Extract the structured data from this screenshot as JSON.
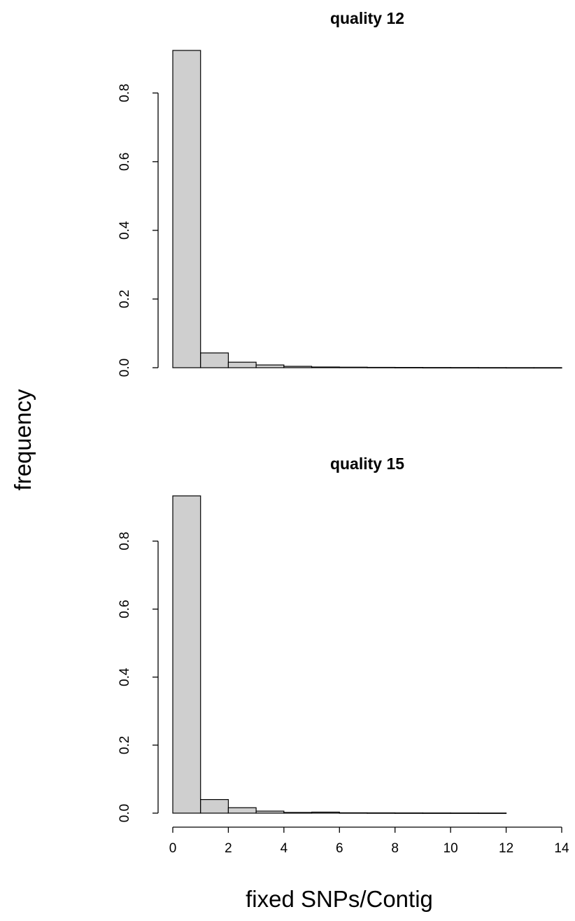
{
  "figure": {
    "ylabel": "frequency",
    "xlabel": "fixed SNPs/Contig"
  },
  "chart_data": [
    {
      "type": "bar",
      "title": "quality 12",
      "bin_edges": [
        0,
        1,
        2,
        3,
        4,
        5,
        6,
        7,
        8,
        9,
        10,
        11,
        12,
        13,
        14
      ],
      "values": [
        0.924,
        0.043,
        0.016,
        0.008,
        0.004,
        0.002,
        0.0015,
        0.001,
        0.0008,
        0.0005,
        0.0004,
        0.0003,
        0.0002,
        0.0002
      ],
      "ylim": [
        0,
        0.924
      ],
      "yticks": [
        "0.0",
        "0.2",
        "0.4",
        "0.6",
        "0.8"
      ],
      "xlim": [
        0,
        14
      ],
      "xticks": []
    },
    {
      "type": "bar",
      "title": "quality 15",
      "bin_edges": [
        0,
        1,
        2,
        3,
        4,
        5,
        6,
        7,
        8,
        9,
        10,
        11,
        12
      ],
      "values": [
        0.933,
        0.04,
        0.016,
        0.006,
        0.002,
        0.003,
        0.001,
        0.0008,
        0.0006,
        0.0005,
        0.0004,
        0.0003
      ],
      "ylim": [
        0,
        0.933
      ],
      "yticks": [
        "0.0",
        "0.2",
        "0.4",
        "0.6",
        "0.8"
      ],
      "xlim": [
        0,
        14
      ],
      "xticks": [
        "0",
        "2",
        "4",
        "6",
        "8",
        "10",
        "12",
        "14"
      ]
    }
  ]
}
